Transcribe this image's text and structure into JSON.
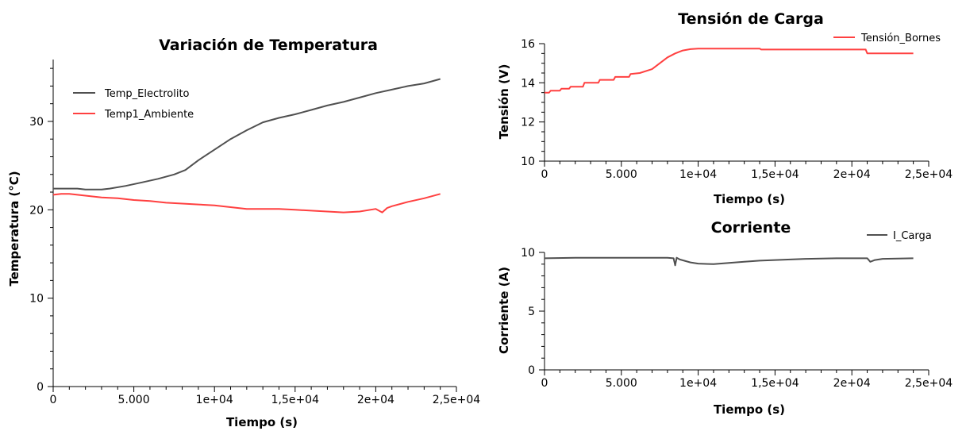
{
  "chart_data": [
    {
      "id": "temp",
      "type": "line",
      "title": "Variación de Temperatura",
      "xlabel": "Tiempo (s)",
      "ylabel": "Temperatura (°C)",
      "xlim": [
        0,
        25000
      ],
      "ylim": [
        0,
        37
      ],
      "x_ticks": [
        0,
        5000,
        10000,
        15000,
        20000,
        25000
      ],
      "x_tick_labels": [
        "0",
        "5.000",
        "1e+04",
        "1,5e+04",
        "2e+04",
        "2,5e+04"
      ],
      "y_ticks": [
        0,
        10,
        20,
        30
      ],
      "y_tick_labels": [
        "0",
        "10",
        "20",
        "30"
      ],
      "legend_position": "top-left",
      "series": [
        {
          "name": "Temp_Electrolito",
          "color": "#505050",
          "x": [
            0,
            1500,
            2000,
            3000,
            3500,
            4500,
            5500,
            6500,
            7500,
            8200,
            9000,
            10000,
            11000,
            12000,
            13000,
            14000,
            15000,
            16000,
            17000,
            18000,
            19000,
            20000,
            21000,
            22000,
            23000,
            24000
          ],
          "y": [
            22.4,
            22.4,
            22.3,
            22.3,
            22.4,
            22.7,
            23.1,
            23.5,
            24.0,
            24.5,
            25.6,
            26.8,
            28.0,
            29.0,
            29.9,
            30.4,
            30.8,
            31.3,
            31.8,
            32.2,
            32.7,
            33.2,
            33.6,
            34.0,
            34.3,
            34.8
          ]
        },
        {
          "name": "Temp1_Ambiente",
          "color": "#ff4040",
          "x": [
            0,
            500,
            1000,
            2000,
            3000,
            4000,
            5000,
            6000,
            7000,
            8000,
            9000,
            10000,
            11000,
            12000,
            13000,
            14000,
            15000,
            16000,
            17000,
            18000,
            19000,
            20000,
            20400,
            20700,
            21000,
            22000,
            23000,
            24000
          ],
          "y": [
            21.7,
            21.8,
            21.8,
            21.6,
            21.4,
            21.3,
            21.1,
            21.0,
            20.8,
            20.7,
            20.6,
            20.5,
            20.3,
            20.1,
            20.1,
            20.1,
            20.0,
            19.9,
            19.8,
            19.7,
            19.8,
            20.1,
            19.7,
            20.2,
            20.4,
            20.9,
            21.3,
            21.8
          ]
        }
      ]
    },
    {
      "id": "volt",
      "type": "line",
      "title": "Tensión de Carga",
      "xlabel": "Tiempo (s)",
      "ylabel": "Tensión (V)",
      "xlim": [
        0,
        25000
      ],
      "ylim": [
        10,
        16
      ],
      "x_ticks": [
        0,
        5000,
        10000,
        15000,
        20000,
        25000
      ],
      "x_tick_labels": [
        "0",
        "5.000",
        "1e+04",
        "1,5e+04",
        "2e+04",
        "2,5e+04"
      ],
      "y_ticks": [
        10,
        12,
        14,
        16
      ],
      "y_tick_labels": [
        "10",
        "12",
        "14",
        "16"
      ],
      "legend_position": "top-right",
      "series": [
        {
          "name": "Tensión_Bornes",
          "color": "#ff4040",
          "x": [
            0,
            300,
            400,
            1000,
            1100,
            1600,
            1700,
            2500,
            2600,
            3500,
            3600,
            4500,
            4600,
            5500,
            5600,
            6200,
            7000,
            7500,
            8000,
            8500,
            9000,
            9500,
            10000,
            14000,
            14100,
            20900,
            21000,
            24000
          ],
          "y": [
            13.5,
            13.5,
            13.6,
            13.6,
            13.7,
            13.7,
            13.8,
            13.8,
            14.0,
            14.0,
            14.15,
            14.15,
            14.3,
            14.3,
            14.45,
            14.5,
            14.7,
            15.0,
            15.3,
            15.5,
            15.65,
            15.72,
            15.75,
            15.75,
            15.7,
            15.7,
            15.5,
            15.5
          ]
        }
      ]
    },
    {
      "id": "curr",
      "type": "line",
      "title": "Corriente",
      "xlabel": "Tiempo (s)",
      "ylabel": "Corriente (A)",
      "xlim": [
        0,
        25000
      ],
      "ylim": [
        0,
        10
      ],
      "x_ticks": [
        0,
        5000,
        10000,
        15000,
        20000,
        25000
      ],
      "x_tick_labels": [
        "0",
        "5.000",
        "1e+04",
        "1,5e+04",
        "2e+04",
        "2,5e+04"
      ],
      "y_ticks": [
        0,
        5,
        10
      ],
      "y_tick_labels": [
        "0",
        "5",
        "10"
      ],
      "legend_position": "top-right",
      "series": [
        {
          "name": "I_Carga",
          "color": "#505050",
          "x": [
            0,
            2000,
            5000,
            8000,
            8400,
            8500,
            8600,
            8800,
            9500,
            10000,
            11000,
            12000,
            13000,
            14000,
            15000,
            17000,
            19000,
            21000,
            21200,
            21500,
            22000,
            24000
          ],
          "y": [
            9.5,
            9.55,
            9.55,
            9.55,
            9.5,
            8.9,
            9.55,
            9.4,
            9.15,
            9.05,
            9.0,
            9.1,
            9.2,
            9.3,
            9.35,
            9.45,
            9.5,
            9.5,
            9.2,
            9.35,
            9.45,
            9.5
          ]
        }
      ]
    }
  ]
}
